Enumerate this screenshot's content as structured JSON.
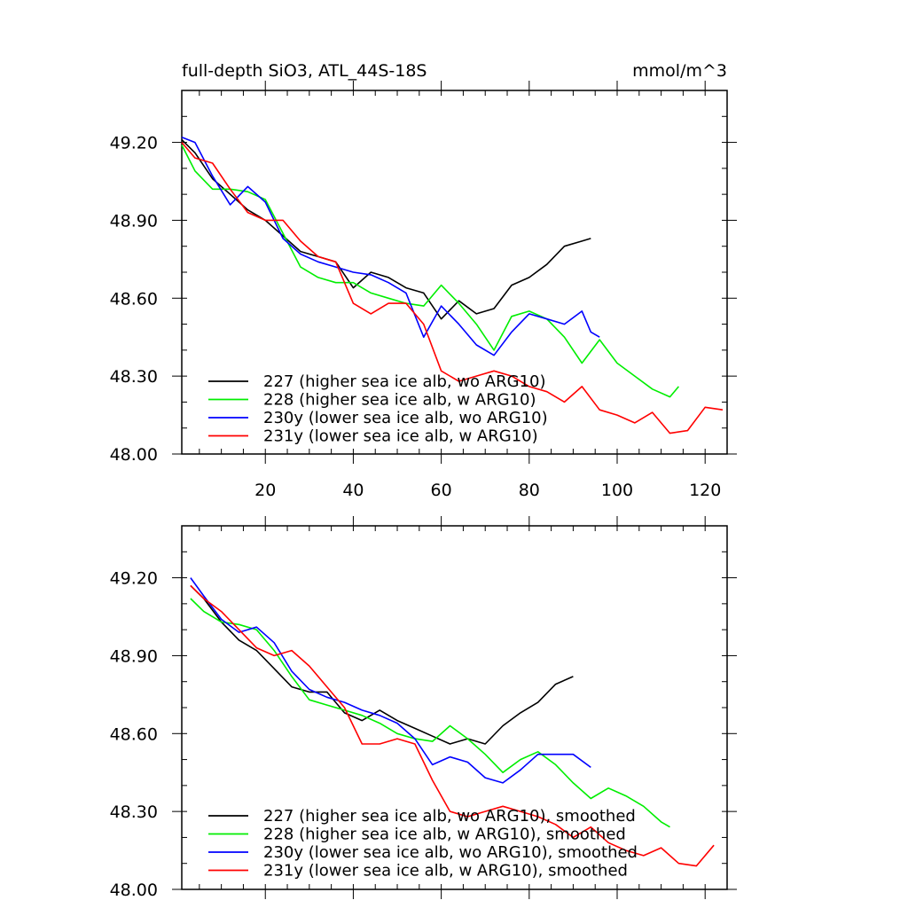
{
  "colors": {
    "227": "#000000",
    "228": "#00ee00",
    "230y": "#0000ff",
    "231y": "#ff0000"
  },
  "chart_data": [
    {
      "type": "line",
      "title": "full-depth SiO3, ATL_44S-18S",
      "units": "mmol/m^3",
      "xlim": [
        1,
        125
      ],
      "ylim": [
        48.0,
        49.4
      ],
      "x_ticks": [
        20,
        40,
        60,
        80,
        100,
        120
      ],
      "x_tick_labels": [
        "20",
        "40",
        "60",
        "80",
        "100",
        "120"
      ],
      "y_ticks": [
        48.0,
        48.3,
        48.6,
        48.9,
        49.2
      ],
      "y_tick_labels": [
        "48.00",
        "48.30",
        "48.60",
        "48.90",
        "49.20"
      ],
      "legend_position": "bottom-left",
      "series": [
        {
          "key": "227",
          "name": "227 (higher sea ice alb, wo ARG10)",
          "x": [
            1,
            4,
            8,
            12,
            16,
            20,
            24,
            28,
            32,
            36,
            40,
            44,
            48,
            52,
            56,
            60,
            64,
            68,
            72,
            76,
            80,
            84,
            88,
            92,
            94
          ],
          "y": [
            49.21,
            49.16,
            49.06,
            49.0,
            48.94,
            48.9,
            48.84,
            48.78,
            48.76,
            48.74,
            48.64,
            48.7,
            48.68,
            48.64,
            48.62,
            48.52,
            48.59,
            48.54,
            48.56,
            48.65,
            48.68,
            48.73,
            48.8,
            48.82,
            48.83
          ]
        },
        {
          "key": "228",
          "name": "228 (higher sea ice alb, w ARG10)",
          "x": [
            1,
            4,
            8,
            12,
            16,
            20,
            24,
            28,
            32,
            36,
            40,
            44,
            48,
            52,
            56,
            60,
            64,
            68,
            72,
            76,
            80,
            84,
            88,
            92,
            96,
            100,
            104,
            108,
            112,
            114
          ],
          "y": [
            49.19,
            49.09,
            49.02,
            49.02,
            49.01,
            48.98,
            48.85,
            48.72,
            48.68,
            48.66,
            48.66,
            48.62,
            48.6,
            48.58,
            48.57,
            48.65,
            48.58,
            48.5,
            48.4,
            48.53,
            48.55,
            48.52,
            48.45,
            48.35,
            48.44,
            48.35,
            48.3,
            48.25,
            48.22,
            48.26
          ]
        },
        {
          "key": "230y",
          "name": "230y (lower sea ice alb, wo ARG10)",
          "x": [
            1,
            4,
            8,
            12,
            16,
            20,
            24,
            28,
            32,
            36,
            40,
            44,
            48,
            52,
            56,
            60,
            64,
            68,
            72,
            76,
            80,
            84,
            88,
            92,
            94,
            96
          ],
          "y": [
            49.22,
            49.2,
            49.07,
            48.96,
            49.03,
            48.97,
            48.83,
            48.77,
            48.74,
            48.72,
            48.7,
            48.69,
            48.66,
            48.62,
            48.45,
            48.57,
            48.5,
            48.42,
            48.38,
            48.47,
            48.54,
            48.52,
            48.5,
            48.55,
            48.47,
            48.45
          ]
        },
        {
          "key": "231y",
          "name": "231y (lower sea ice alb, w ARG10)",
          "x": [
            1,
            4,
            8,
            12,
            16,
            20,
            24,
            28,
            32,
            36,
            40,
            44,
            48,
            52,
            56,
            60,
            64,
            68,
            72,
            76,
            80,
            84,
            88,
            92,
            96,
            100,
            104,
            108,
            112,
            116,
            120,
            124
          ],
          "y": [
            49.2,
            49.14,
            49.12,
            49.02,
            48.93,
            48.9,
            48.9,
            48.82,
            48.76,
            48.74,
            48.58,
            48.54,
            48.58,
            48.58,
            48.5,
            48.32,
            48.28,
            48.3,
            48.32,
            48.3,
            48.26,
            48.24,
            48.2,
            48.26,
            48.17,
            48.15,
            48.12,
            48.16,
            48.08,
            48.09,
            48.18,
            48.17
          ]
        }
      ]
    },
    {
      "type": "line",
      "xlim": [
        1,
        125
      ],
      "ylim": [
        48.0,
        49.4
      ],
      "x_ticks": [
        20,
        40,
        60,
        80,
        100,
        120
      ],
      "y_ticks": [
        48.0,
        48.3,
        48.6,
        48.9,
        49.2
      ],
      "y_tick_labels": [
        "48.00",
        "48.30",
        "48.60",
        "48.90",
        "49.20"
      ],
      "legend_position": "bottom-left",
      "series": [
        {
          "key": "227",
          "name": "227 (higher sea ice alb, wo ARG10), smoothed",
          "x": [
            3,
            6,
            10,
            14,
            18,
            22,
            26,
            30,
            34,
            38,
            42,
            46,
            50,
            54,
            58,
            62,
            66,
            70,
            74,
            78,
            82,
            86,
            90
          ],
          "y": [
            49.17,
            49.12,
            49.03,
            48.96,
            48.92,
            48.85,
            48.78,
            48.76,
            48.76,
            48.68,
            48.65,
            48.69,
            48.65,
            48.62,
            48.59,
            48.56,
            48.58,
            48.56,
            48.63,
            48.68,
            48.72,
            48.79,
            48.82
          ]
        },
        {
          "key": "228",
          "name": "228 (higher sea ice alb, w ARG10), smoothed",
          "x": [
            3,
            6,
            10,
            14,
            18,
            22,
            26,
            30,
            34,
            38,
            42,
            46,
            50,
            54,
            58,
            62,
            66,
            70,
            74,
            78,
            82,
            86,
            90,
            94,
            98,
            102,
            106,
            110,
            112
          ],
          "y": [
            49.12,
            49.07,
            49.03,
            49.02,
            49.0,
            48.92,
            48.82,
            48.73,
            48.71,
            48.69,
            48.67,
            48.64,
            48.6,
            48.58,
            48.57,
            48.63,
            48.58,
            48.52,
            48.45,
            48.5,
            48.53,
            48.48,
            48.41,
            48.35,
            48.39,
            48.36,
            48.32,
            48.26,
            48.24
          ]
        },
        {
          "key": "230y",
          "name": "230y (lower sea ice alb, wo ARG10), smoothed",
          "x": [
            3,
            6,
            10,
            14,
            18,
            22,
            26,
            30,
            34,
            38,
            42,
            46,
            50,
            54,
            58,
            62,
            66,
            70,
            74,
            78,
            82,
            86,
            90,
            94
          ],
          "y": [
            49.2,
            49.13,
            49.04,
            48.99,
            49.01,
            48.95,
            48.84,
            48.77,
            48.74,
            48.72,
            48.69,
            48.67,
            48.64,
            48.58,
            48.48,
            48.51,
            48.49,
            48.43,
            48.41,
            48.46,
            48.52,
            48.52,
            48.52,
            48.47
          ]
        },
        {
          "key": "231y",
          "name": "231y (lower sea ice alb, w ARG10), smoothed",
          "x": [
            3,
            6,
            10,
            14,
            18,
            22,
            26,
            30,
            34,
            38,
            42,
            46,
            50,
            54,
            58,
            62,
            66,
            70,
            74,
            78,
            82,
            86,
            90,
            94,
            98,
            102,
            106,
            110,
            114,
            118,
            122
          ],
          "y": [
            49.17,
            49.12,
            49.07,
            49.0,
            48.93,
            48.9,
            48.92,
            48.86,
            48.78,
            48.7,
            48.56,
            48.56,
            48.58,
            48.56,
            48.42,
            48.3,
            48.28,
            48.3,
            48.32,
            48.3,
            48.28,
            48.25,
            48.2,
            48.24,
            48.18,
            48.15,
            48.13,
            48.16,
            48.1,
            48.09,
            48.17
          ]
        }
      ]
    }
  ]
}
